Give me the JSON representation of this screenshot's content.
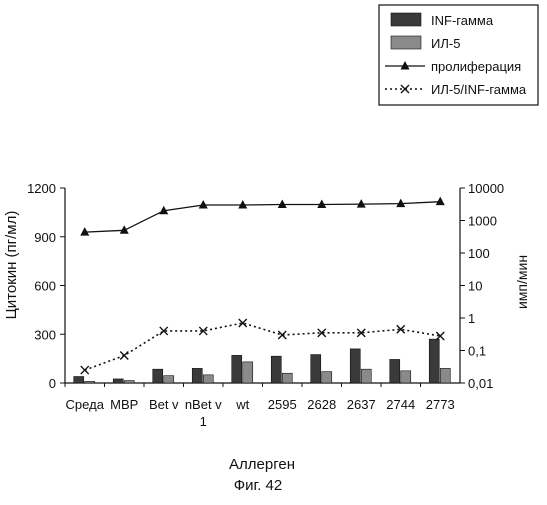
{
  "chart_data": {
    "type": "bar",
    "categories": [
      "Среда",
      "MBP",
      "Bet v",
      "nBet v 1",
      "wt",
      "2595",
      "2628",
      "2637",
      "2744",
      "2773"
    ],
    "category_lines": [
      [
        "Среда"
      ],
      [
        "MBP"
      ],
      [
        "Bet v"
      ],
      [
        "nBet v",
        "1"
      ],
      [
        "wt"
      ],
      [
        "2595"
      ],
      [
        "2628"
      ],
      [
        "2637"
      ],
      [
        "2744"
      ],
      [
        "2773"
      ]
    ],
    "xlabel": "Аллерген",
    "ylabel": "Цитокин (пг/мл)",
    "y2label": "имп/мин",
    "ylim": [
      0,
      1200
    ],
    "yticks": [
      0,
      300,
      600,
      900,
      1200
    ],
    "y2lim": [
      0.01,
      10000
    ],
    "y2scale": "log",
    "y2ticks": [
      "0,01",
      "0,1",
      "1",
      "10",
      "100",
      "1000",
      "10000"
    ],
    "y2tick_values": [
      0.01,
      0.1,
      1,
      10,
      100,
      1000,
      10000
    ],
    "grid": false,
    "legend_position": "top-right",
    "series": [
      {
        "name": "INF-гамма",
        "kind": "bar",
        "axis": "left",
        "color": "#3a3a3a",
        "values": [
          40,
          25,
          85,
          90,
          170,
          165,
          175,
          210,
          145,
          270
        ]
      },
      {
        "name": "ИЛ-5",
        "kind": "bar",
        "axis": "left",
        "color": "#8a8a8a",
        "values": [
          10,
          15,
          45,
          50,
          130,
          60,
          70,
          85,
          75,
          90
        ]
      },
      {
        "name": "пролиферация",
        "kind": "line",
        "axis": "right",
        "style": "solid",
        "marker": "triangle",
        "values": [
          440,
          500,
          2000,
          3000,
          3000,
          3100,
          3100,
          3200,
          3300,
          3800
        ]
      },
      {
        "name": "ИЛ-5/INF-гамма",
        "kind": "line",
        "axis": "right",
        "style": "dotted",
        "marker": "x",
        "values": [
          0.025,
          0.07,
          0.4,
          0.4,
          0.7,
          0.3,
          0.35,
          0.35,
          0.45,
          0.28
        ]
      }
    ]
  },
  "figure_caption": "Фиг. 42"
}
